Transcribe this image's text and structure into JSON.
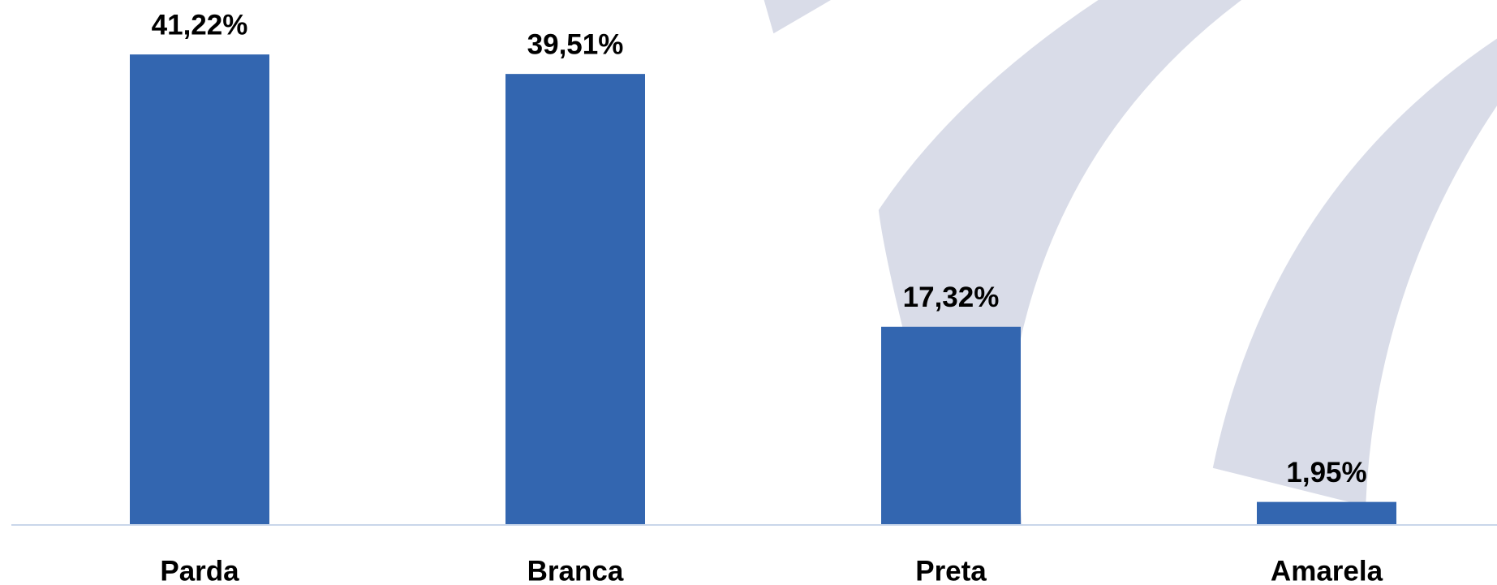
{
  "chart_data": {
    "type": "bar",
    "categories": [
      "Parda",
      "Branca",
      "Preta",
      "Amarela"
    ],
    "values": [
      41.22,
      39.51,
      17.32,
      1.95
    ],
    "value_labels": [
      "41,22%",
      "39,51%",
      "17,32%",
      "1,95%"
    ],
    "color": "#3366b0",
    "ylim": [
      0,
      46
    ]
  }
}
